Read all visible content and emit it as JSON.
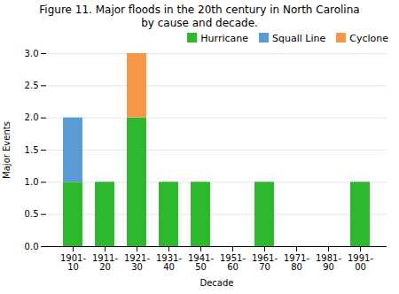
{
  "chart_data": {
    "type": "bar",
    "stacked": true,
    "title": "Figure 11.  Major floods in the 20th century in North Carolina\nby cause and decade.",
    "xlabel": "Decade",
    "ylabel": "Major Events",
    "categories": [
      "1901-\n10",
      "1911-\n20",
      "1921-\n30",
      "1931-\n40",
      "1941-\n50",
      "1951-\n60",
      "1961-\n70",
      "1971-\n80",
      "1981-\n90",
      "1991-\n00"
    ],
    "series": [
      {
        "name": "Hurricane",
        "color": "#2db82d",
        "values": [
          1,
          1,
          2,
          1,
          1,
          0,
          1,
          0,
          0,
          1
        ]
      },
      {
        "name": "Squall Line",
        "color": "#5b9bd5",
        "values": [
          1,
          0,
          0,
          0,
          0,
          0,
          0,
          0,
          0,
          0
        ]
      },
      {
        "name": "Cyclone",
        "color": "#f79646",
        "values": [
          0,
          0,
          1,
          0,
          0,
          0,
          0,
          0,
          0,
          0
        ]
      }
    ],
    "ylim": [
      0,
      3.0
    ],
    "yticks": [
      {
        "value": 0,
        "label": "0.0"
      },
      0.5,
      {
        "value": 1,
        "label": "1.0"
      },
      1.5,
      {
        "value": 2,
        "label": "2.0"
      },
      2.5,
      {
        "value": 3,
        "label": "3.0"
      }
    ],
    "grid": true,
    "legend": "upper right"
  }
}
